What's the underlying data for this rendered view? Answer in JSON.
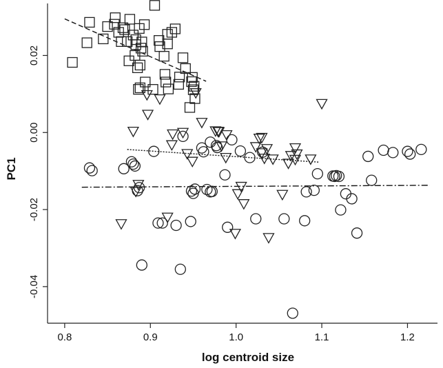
{
  "chart_data": {
    "type": "scatter",
    "title": "",
    "xlabel": "log centroid size",
    "ylabel": "PC1",
    "xlim": [
      0.78,
      1.235
    ],
    "ylim": [
      -0.0495,
      0.0335
    ],
    "xticks": [
      0.8,
      0.9,
      1.0,
      1.1,
      1.2
    ],
    "xtick_labels": [
      "0.8",
      "0.9",
      "1.0",
      "1.1",
      "1.2"
    ],
    "yticks": [
      -0.04,
      -0.02,
      0.0,
      0.02
    ],
    "ytick_labels": [
      "-0.04",
      "-0.02",
      "0.00",
      "0.02"
    ],
    "grid": false,
    "series": [
      {
        "marker": "square",
        "x": [
          0.809,
          0.826,
          0.829,
          0.845,
          0.85,
          0.858,
          0.859,
          0.863,
          0.866,
          0.868,
          0.87,
          0.873,
          0.875,
          0.876,
          0.88,
          0.882,
          0.883,
          0.883,
          0.885,
          0.886,
          0.887,
          0.888,
          0.888,
          0.889,
          0.89,
          0.891,
          0.893,
          0.894,
          0.903,
          0.905,
          0.91,
          0.911,
          0.916,
          0.917,
          0.918,
          0.92,
          0.92,
          0.921,
          0.925,
          0.929,
          0.933,
          0.934,
          0.938,
          0.941,
          0.946,
          0.948,
          0.949,
          0.95,
          0.951,
          0.952
        ],
        "y": [
          0.0182,
          0.0233,
          0.0286,
          0.0243,
          0.0275,
          0.0281,
          0.0298,
          0.026,
          0.0236,
          0.0272,
          0.0267,
          0.0236,
          0.0186,
          0.0294,
          0.0253,
          0.02,
          0.0228,
          0.0241,
          0.0168,
          0.0112,
          0.027,
          0.0175,
          0.0116,
          0.0219,
          0.0235,
          0.0211,
          0.028,
          0.0131,
          0.0112,
          0.033,
          0.0239,
          0.0223,
          0.0198,
          0.0151,
          0.0131,
          0.0255,
          0.023,
          0.0113,
          0.026,
          0.0269,
          0.0125,
          0.0144,
          0.0194,
          0.0166,
          0.0065,
          0.0132,
          0.0143,
          0.0111,
          0.012,
          0.0088
        ],
        "fit_x": [
          0.8,
          0.965
        ],
        "fit_y": [
          0.0295,
          0.0133
        ]
      },
      {
        "marker": "triangle-down",
        "x": [
          0.866,
          0.88,
          0.883,
          0.886,
          0.896,
          0.897,
          0.911,
          0.92,
          0.925,
          0.926,
          0.938,
          0.943,
          0.949,
          0.953,
          0.96,
          0.976,
          0.979,
          0.98,
          0.983,
          0.988,
          0.989,
          0.999,
          1.002,
          1.006,
          1.009,
          1.023,
          1.027,
          1.03,
          1.03,
          1.033,
          1.036,
          1.038,
          1.043,
          1.054,
          1.061,
          1.064,
          1.069,
          1.069,
          1.071,
          1.087,
          1.1
        ],
        "y": [
          -0.0237,
          0.0003,
          -0.0153,
          -0.0135,
          0.0098,
          0.0047,
          0.0087,
          -0.022,
          -0.0032,
          -0.0004,
          0.0,
          -0.0055,
          -0.0075,
          0.0103,
          0.0026,
          0.0004,
          0.0003,
          0.0002,
          -0.0035,
          -0.0065,
          -0.0006,
          -0.0262,
          -0.0159,
          -0.014,
          -0.0185,
          -0.0037,
          -0.0015,
          -0.0053,
          -0.0013,
          -0.0067,
          -0.0042,
          -0.0273,
          -0.0069,
          -0.0161,
          -0.008,
          -0.006,
          -0.004,
          -0.007,
          -0.0056,
          -0.0069,
          0.0075
        ],
        "fit_x": [
          0.873,
          1.097
        ],
        "fit_y": [
          -0.0044,
          -0.0077
        ]
      },
      {
        "marker": "circle",
        "x": [
          0.829,
          0.832,
          0.869,
          0.878,
          0.88,
          0.882,
          0.885,
          0.887,
          0.89,
          0.904,
          0.909,
          0.914,
          0.93,
          0.935,
          0.938,
          0.947,
          0.948,
          0.95,
          0.952,
          0.96,
          0.962,
          0.966,
          0.97,
          0.97,
          0.972,
          0.977,
          0.978,
          0.987,
          0.99,
          0.995,
          1.005,
          1.016,
          1.023,
          1.031,
          1.056,
          1.066,
          1.08,
          1.082,
          1.091,
          1.095,
          1.113,
          1.115,
          1.117,
          1.12,
          1.122,
          1.128,
          1.135,
          1.141,
          1.154,
          1.158,
          1.172,
          1.183,
          1.2,
          1.203,
          1.216
        ],
        "y": [
          -0.0092,
          -0.0099,
          -0.0094,
          -0.0076,
          -0.0082,
          -0.0087,
          -0.0151,
          -0.0143,
          -0.0344,
          -0.0049,
          -0.0235,
          -0.0235,
          -0.0241,
          -0.0355,
          -0.001,
          -0.0231,
          -0.0152,
          -0.0158,
          -0.0147,
          -0.004,
          -0.005,
          -0.0148,
          -0.0154,
          -0.0025,
          -0.0153,
          -0.0034,
          -0.0039,
          -0.011,
          -0.0246,
          -0.0019,
          -0.0048,
          -0.0065,
          -0.0224,
          -0.0051,
          -0.0224,
          -0.0469,
          -0.0229,
          -0.0154,
          -0.015,
          -0.0107,
          -0.0113,
          -0.0114,
          -0.0112,
          -0.0114,
          -0.0201,
          -0.0159,
          -0.0172,
          -0.0261,
          -0.0062,
          -0.0124,
          -0.0046,
          -0.0052,
          -0.0049,
          -0.0056,
          -0.0044
        ],
        "fit_x": [
          0.82,
          1.226
        ],
        "fit_y": [
          -0.0142,
          -0.0137
        ]
      }
    ]
  }
}
